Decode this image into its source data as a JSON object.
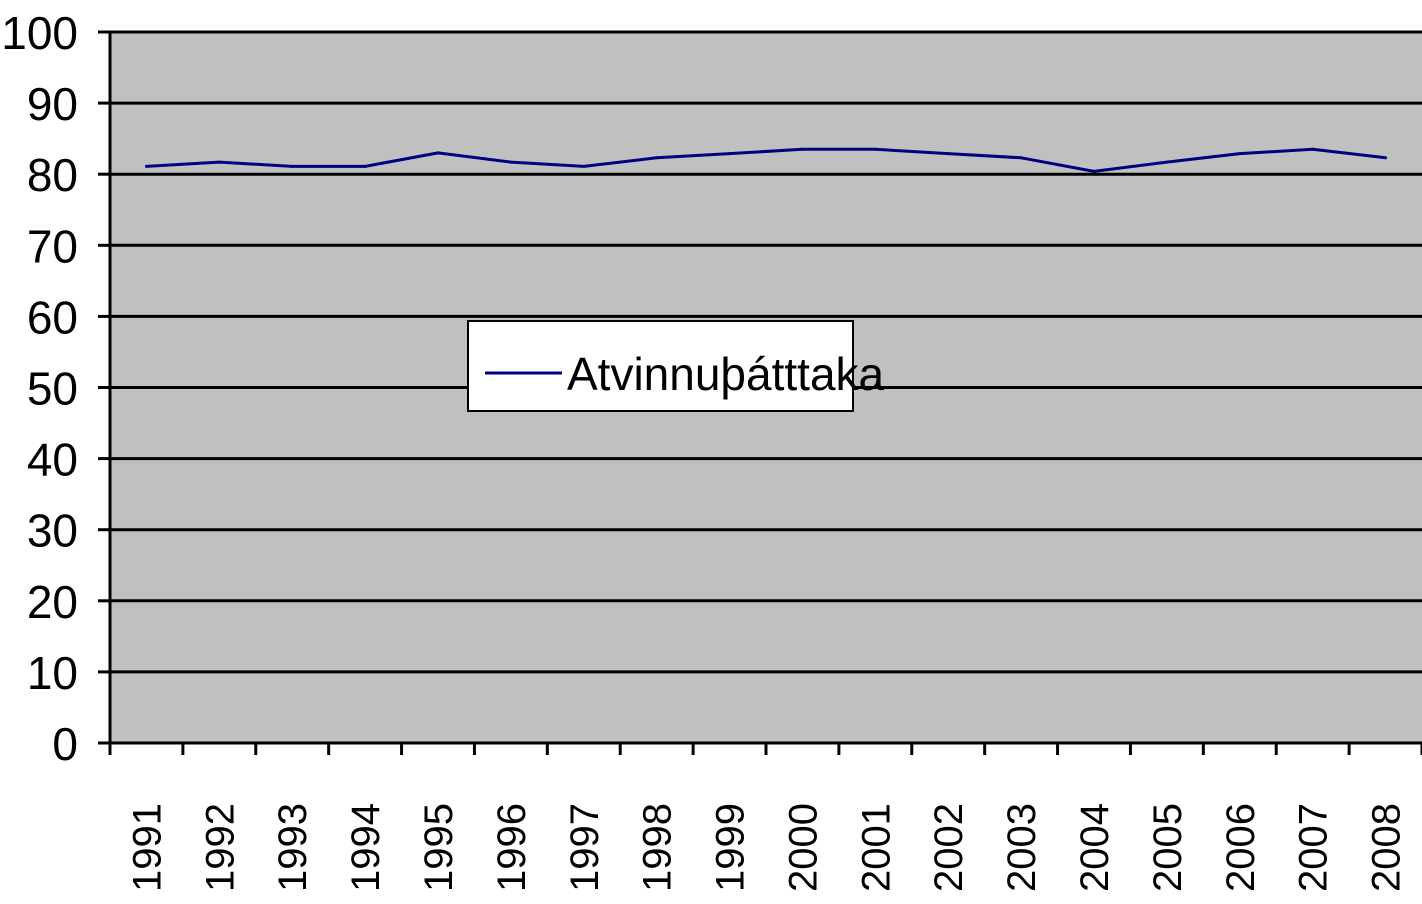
{
  "chart_data": {
    "type": "line",
    "title": "",
    "xlabel": "",
    "ylabel": "",
    "categories": [
      "1991",
      "1992",
      "1993",
      "1994",
      "1995",
      "1996",
      "1997",
      "1998",
      "1999",
      "2000",
      "2001",
      "2002",
      "2003",
      "2004",
      "2005",
      "2006",
      "2007",
      "2008"
    ],
    "series": [
      {
        "name": "Atvinnuþátttaka",
        "values": [
          81.1,
          81.7,
          81.1,
          81.1,
          83.0,
          81.7,
          81.1,
          82.3,
          82.9,
          83.5,
          83.5,
          82.9,
          82.3,
          80.4,
          81.7,
          82.9,
          83.5,
          82.3
        ]
      }
    ],
    "ylim": [
      0,
      100
    ],
    "yticks": [
      "0",
      "10",
      "20",
      "30",
      "40",
      "50",
      "60",
      "70",
      "80",
      "90",
      "100"
    ],
    "grid": true,
    "legend_position": "center",
    "colors": {
      "plot_background": "#c0c0c0",
      "series": "#000080",
      "grid": "#000000"
    }
  }
}
